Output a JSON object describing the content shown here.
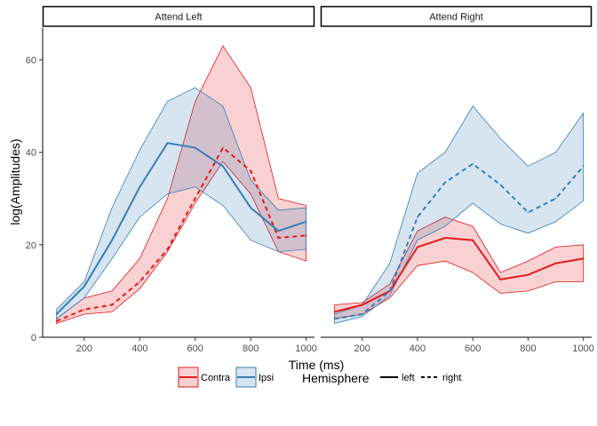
{
  "chart_data": {
    "type": "line",
    "xlabel": "Time (ms)",
    "ylabel": "log(Amplitudes)",
    "xlim": [
      50,
      1030
    ],
    "ylim": [
      0,
      67
    ],
    "x_ticks": [
      200,
      400,
      600,
      800,
      1000
    ],
    "y_ticks": [
      0,
      20,
      40,
      60
    ],
    "x": [
      100,
      200,
      300,
      400,
      500,
      600,
      700,
      800,
      900,
      1000
    ],
    "colors": {
      "Contra": "#E41A1C",
      "Ipsi": "#377EB8"
    },
    "legend": {
      "position": "bottom",
      "fill_entries": [
        "Contra",
        "Ipsi"
      ],
      "hemisphere_title": "Hemisphere",
      "linetype_entries": [
        "left",
        "right"
      ]
    },
    "panels": [
      {
        "title": "Attend Left",
        "series": [
          {
            "group": "Contra",
            "linetype": "dashed",
            "values": [
              3.5,
              6,
              7,
              12,
              19,
              30,
              41,
              36,
              21.5,
              22
            ],
            "lower": [
              3,
              5,
              5.5,
              10.5,
              18.5,
              29,
              38,
              31,
              18.5,
              16.5
            ],
            "upper": [
              4,
              8.5,
              10,
              17,
              30,
              51,
              63,
              54,
              30,
              28.5
            ]
          },
          {
            "group": "Ipsi",
            "linetype": "solid",
            "values": [
              5,
              11,
              21,
              32.5,
              42,
              41,
              37,
              28,
              23,
              25
            ],
            "lower": [
              4,
              8.5,
              17,
              26,
              31,
              32.5,
              28.5,
              21,
              18.5,
              19
            ],
            "upper": [
              6,
              12,
              28,
              40.5,
              51,
              54,
              50,
              34,
              27.5,
              28
            ]
          }
        ]
      },
      {
        "title": "Attend Right",
        "series": [
          {
            "group": "Contra",
            "linetype": "solid",
            "values": [
              5.5,
              7,
              10,
              19.5,
              21.5,
              21,
              12.5,
              13.5,
              16,
              17
            ],
            "lower": [
              4,
              5,
              8.5,
              15.5,
              16.5,
              14,
              9.5,
              10,
              12,
              12
            ],
            "upper": [
              7,
              7.5,
              11.5,
              23,
              26,
              24,
              14,
              16.5,
              19.5,
              20
            ]
          },
          {
            "group": "Ipsi",
            "linetype": "dashed",
            "values": [
              4,
              5,
              10,
              26,
              33.5,
              37.5,
              33,
              27,
              30,
              37
            ],
            "lower": [
              3,
              4.5,
              9,
              21,
              24,
              29,
              24.5,
              22.5,
              25,
              29.5
            ],
            "upper": [
              5,
              7,
              16,
              35.5,
              40,
              50,
              43,
              37,
              40,
              48.5
            ]
          }
        ]
      }
    ]
  }
}
